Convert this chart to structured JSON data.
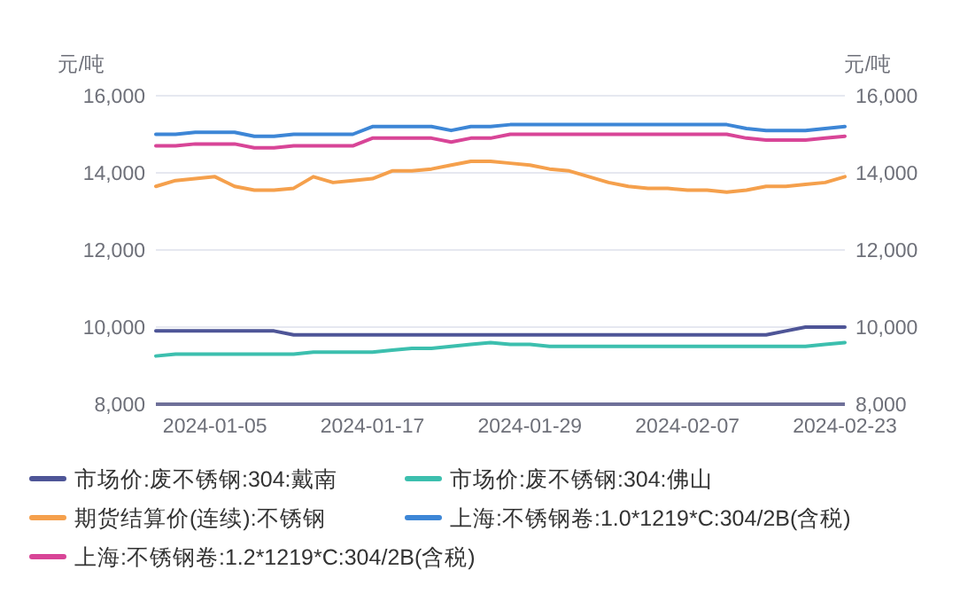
{
  "chart_data": {
    "type": "line",
    "categories": [
      null,
      null,
      null,
      "2024-01-05",
      null,
      null,
      null,
      null,
      null,
      null,
      null,
      "2024-01-17",
      null,
      null,
      null,
      null,
      null,
      null,
      null,
      "2024-01-29",
      null,
      null,
      null,
      null,
      null,
      null,
      null,
      "2024-02-07",
      null,
      null,
      null,
      null,
      null,
      null,
      null,
      "2024-02-23"
    ],
    "ylabel": "元/吨",
    "y2label": "元/吨",
    "ylim": [
      8000,
      16000
    ],
    "yticks": [
      {
        "value": 8000,
        "label": "8,000"
      },
      {
        "value": 10000,
        "label": "10,000"
      },
      {
        "value": 12000,
        "label": "12,000"
      },
      {
        "value": 14000,
        "label": "14,000"
      },
      {
        "value": 16000,
        "label": "16,000"
      }
    ],
    "y2lim": [
      8000,
      16000
    ],
    "y2ticks": [
      {
        "value": 8000,
        "label": "8,000"
      },
      {
        "value": 10000,
        "label": "10,000"
      },
      {
        "value": 12000,
        "label": "12,000"
      },
      {
        "value": 14000,
        "label": "14,000"
      },
      {
        "value": 16000,
        "label": "16,000"
      }
    ],
    "grid": "y",
    "legend": "bottom",
    "marker": "none",
    "line_style": "solid",
    "series": [
      {
        "name": "市场价:废不锈钢:304:戴南",
        "color": "#4e5597",
        "values": [
          9900,
          9900,
          9900,
          9900,
          9900,
          9900,
          9900,
          9800,
          9800,
          9800,
          9800,
          9800,
          9800,
          9800,
          9800,
          9800,
          9800,
          9800,
          9800,
          9800,
          9800,
          9800,
          9800,
          9800,
          9800,
          9800,
          9800,
          9800,
          9800,
          9800,
          9800,
          9800,
          9900,
          10000,
          10000,
          10000
        ]
      },
      {
        "name": "市场价:废不锈钢:304:佛山",
        "color": "#3cbfae",
        "values": [
          9250,
          9300,
          9300,
          9300,
          9300,
          9300,
          9300,
          9300,
          9350,
          9350,
          9350,
          9350,
          9400,
          9450,
          9450,
          9500,
          9550,
          9600,
          9550,
          9550,
          9500,
          9500,
          9500,
          9500,
          9500,
          9500,
          9500,
          9500,
          9500,
          9500,
          9500,
          9500,
          9500,
          9500,
          9550,
          9600
        ]
      },
      {
        "name": "期货结算价(连续):不锈钢",
        "color": "#f5a04c",
        "values": [
          13650,
          13800,
          13850,
          13900,
          13650,
          13550,
          13550,
          13600,
          13900,
          13750,
          13800,
          13850,
          14050,
          14050,
          14100,
          14200,
          14300,
          14300,
          14250,
          14200,
          14100,
          14050,
          13900,
          13750,
          13650,
          13600,
          13600,
          13550,
          13550,
          13500,
          13550,
          13650,
          13650,
          13700,
          13750,
          13900
        ]
      },
      {
        "name": "上海:不锈钢卷:1.0*1219*C:304/2B(含税)",
        "color": "#3d86d6",
        "values": [
          15000,
          15000,
          15050,
          15050,
          15050,
          14950,
          14950,
          15000,
          15000,
          15000,
          15000,
          15200,
          15200,
          15200,
          15200,
          15100,
          15200,
          15200,
          15250,
          15250,
          15250,
          15250,
          15250,
          15250,
          15250,
          15250,
          15250,
          15250,
          15250,
          15250,
          15150,
          15100,
          15100,
          15100,
          15150,
          15200
        ]
      },
      {
        "name": "上海:不锈钢卷:1.2*1219*C:304/2B(含税)",
        "color": "#d84597",
        "values": [
          14700,
          14700,
          14750,
          14750,
          14750,
          14650,
          14650,
          14700,
          14700,
          14700,
          14700,
          14900,
          14900,
          14900,
          14900,
          14800,
          14900,
          14900,
          15000,
          15000,
          15000,
          15000,
          15000,
          15000,
          15000,
          15000,
          15000,
          15000,
          15000,
          15000,
          14900,
          14850,
          14850,
          14850,
          14900,
          14950
        ]
      }
    ]
  }
}
